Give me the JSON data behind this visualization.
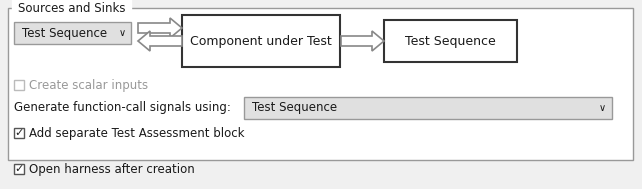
{
  "bg_color": "#f0f0f0",
  "panel_bg": "#ffffff",
  "border_color": "#999999",
  "title": "Sources and Sinks",
  "dropdown1_label": "Test Sequence",
  "center_box_label": "Component under Test",
  "right_box_label": "Test Sequence",
  "checkbox1_label": "Create scalar inputs",
  "checkbox1_checked": false,
  "gen_label": "Generate function-call signals using:",
  "gen_dropdown": "Test Sequence",
  "checkbox2_label": "Add separate Test Assessment block",
  "checkbox2_checked": true,
  "checkbox3_label": "Open harness after creation",
  "checkbox3_checked": true,
  "text_color": "#1a1a1a",
  "disabled_text_color": "#999999",
  "box_border": "#333333",
  "dropdown_bg": "#e0e0e0",
  "arrow_fill": "#ffffff",
  "arrow_edge": "#888888"
}
